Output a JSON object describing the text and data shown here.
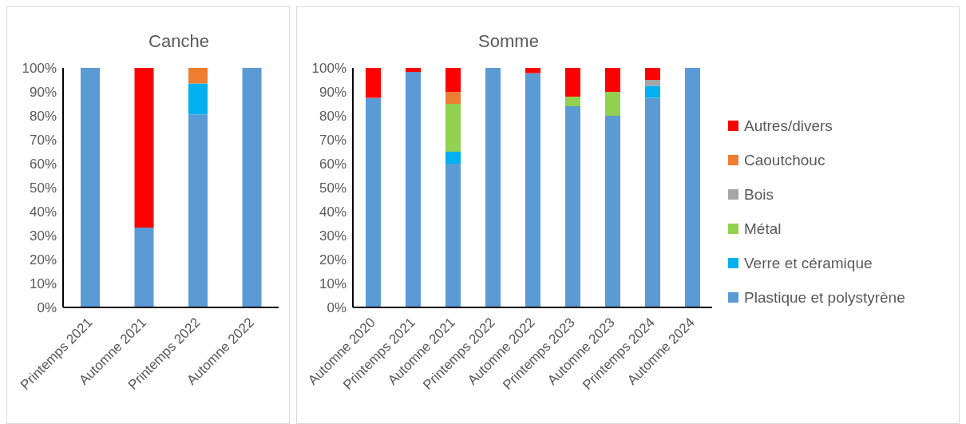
{
  "chart_data": [
    {
      "type": "bar",
      "title": "Canche",
      "stacked": true,
      "categories": [
        "Printemps 2021",
        "Automne 2021",
        "Printemps 2022",
        "Automne 2022"
      ],
      "ylim": [
        0,
        100
      ],
      "yticks": [
        {
          "value": 0,
          "label": "0%"
        },
        {
          "value": 10,
          "label": "10%"
        },
        {
          "value": 20,
          "label": "20%"
        },
        {
          "value": 30,
          "label": "30%"
        },
        {
          "value": 40,
          "label": "40%"
        },
        {
          "value": 50,
          "label": "50%"
        },
        {
          "value": 60,
          "label": "60%"
        },
        {
          "value": 70,
          "label": "70%"
        },
        {
          "value": 80,
          "label": "80%"
        },
        {
          "value": 90,
          "label": "90%"
        },
        {
          "value": 100,
          "label": "100%"
        }
      ],
      "grid": false,
      "legend": false,
      "series": [
        {
          "color": "#5b9bd5",
          "values": [
            100,
            33.3,
            80.6,
            100
          ]
        },
        {
          "color": "#00b0f0",
          "values": [
            0,
            0,
            12.9,
            0
          ]
        },
        {
          "color": "#ed7d31",
          "values": [
            0,
            0,
            6.5,
            0
          ]
        },
        {
          "color": "#ff0000",
          "values": [
            0,
            66.7,
            0,
            0
          ]
        }
      ]
    },
    {
      "type": "bar",
      "title": "Somme",
      "stacked": true,
      "categories": [
        "Automne 2020",
        "Printemps 2021",
        "Automne 2021",
        "Printemps 2022",
        "Automne 2022",
        "Printemps 2023",
        "Automne 2023",
        "Printemps 2024",
        "Automne 2024"
      ],
      "ylim": [
        0,
        100
      ],
      "yticks": [
        {
          "value": 0,
          "label": "0%"
        },
        {
          "value": 10,
          "label": "10%"
        },
        {
          "value": 20,
          "label": "20%"
        },
        {
          "value": 30,
          "label": "30%"
        },
        {
          "value": 40,
          "label": "40%"
        },
        {
          "value": 50,
          "label": "50%"
        },
        {
          "value": 60,
          "label": "60%"
        },
        {
          "value": 70,
          "label": "70%"
        },
        {
          "value": 80,
          "label": "80%"
        },
        {
          "value": 90,
          "label": "90%"
        },
        {
          "value": 100,
          "label": "100%"
        }
      ],
      "grid": false,
      "legend": "right",
      "series": [
        {
          "name": "Plastique et polystyrène",
          "color": "#5b9bd5",
          "values": [
            87.5,
            98.3,
            60,
            100,
            97.8,
            84,
            80,
            87.5,
            100
          ]
        },
        {
          "name": "Verre et céramique",
          "color": "#00b0f0",
          "values": [
            0,
            0,
            5,
            0,
            0,
            0,
            0,
            5,
            0
          ]
        },
        {
          "name": "Métal",
          "color": "#92d050",
          "values": [
            0,
            0,
            20,
            0,
            0,
            4,
            10,
            0,
            0
          ]
        },
        {
          "name": "Bois",
          "color": "#a5a5a5",
          "values": [
            0,
            0,
            0,
            0,
            0,
            0,
            0,
            2.5,
            0
          ]
        },
        {
          "name": "Caoutchouc",
          "color": "#ed7d31",
          "values": [
            0,
            0,
            5,
            0,
            0,
            0,
            0,
            0,
            0
          ]
        },
        {
          "name": "Autres/divers",
          "color": "#ff0000",
          "values": [
            12.5,
            1.7,
            10,
            0,
            2.2,
            12,
            10,
            5,
            0
          ]
        }
      ]
    }
  ]
}
